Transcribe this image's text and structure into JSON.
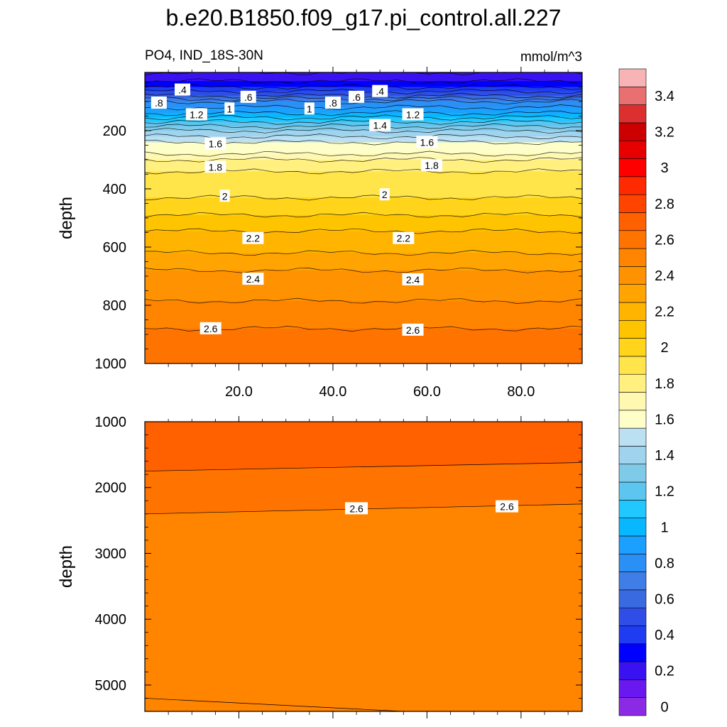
{
  "chart_data": {
    "type": "contour",
    "title": "b.e20.B1850.f09_g17.pi_control.all.227",
    "variable": "PO4, IND_18S-30N",
    "units": "mmol/m^3",
    "colorbar": {
      "levels": [
        0,
        0.1,
        0.2,
        0.3,
        0.4,
        0.5,
        0.6,
        0.7,
        0.8,
        0.9,
        1.0,
        1.1,
        1.2,
        1.3,
        1.4,
        1.5,
        1.6,
        1.7,
        1.8,
        1.9,
        2.0,
        2.1,
        2.2,
        2.3,
        2.4,
        2.5,
        2.6,
        2.7,
        2.8,
        2.9,
        3.0,
        3.1,
        3.2,
        3.3,
        3.4,
        3.5
      ],
      "labels": [
        "0",
        "0.2",
        "0.4",
        "0.6",
        "0.8",
        "1",
        "1.2",
        "1.4",
        "1.6",
        "1.8",
        "2",
        "2.2",
        "2.4",
        "2.6",
        "2.8",
        "3",
        "3.2",
        "3.4"
      ],
      "colors": [
        "#8b2ae5",
        "#6a18f0",
        "#3a12f2",
        "#0000ff",
        "#1f3cf2",
        "#2f4ee8",
        "#3a6ae0",
        "#3e7ee6",
        "#2a90f5",
        "#1ca0ff",
        "#08b8ff",
        "#20c8ff",
        "#5cc6f0",
        "#80cae9",
        "#a0d4ee",
        "#bae0f2",
        "#fefec8",
        "#fff8b0",
        "#fff080",
        "#ffe44a",
        "#ffd41a",
        "#ffc400",
        "#ffb400",
        "#ffa400",
        "#ff9200",
        "#ff8400",
        "#ff7400",
        "#ff6000",
        "#ff4400",
        "#ff2a00",
        "#ff0000",
        "#e60000",
        "#cc0000",
        "#dc3030",
        "#e87070",
        "#f8b4b4"
      ]
    },
    "panels": [
      {
        "name": "upper",
        "x_range": [
          0,
          93
        ],
        "x_ticks": [
          20.0,
          40.0,
          60.0,
          80.0
        ],
        "x_tick_labels": [
          "20.0",
          "40.0",
          "60.0",
          "80.0"
        ],
        "ylabel": "depth",
        "y_range": [
          0,
          1000
        ],
        "y_ticks": [
          200,
          400,
          600,
          800,
          1000
        ],
        "y_tick_labels": [
          "200",
          "400",
          "600",
          "800",
          "1000"
        ],
        "profile": {
          "depth": [
            0,
            30,
            50,
            80,
            100,
            140,
            170,
            200,
            240,
            280,
            300,
            340,
            400,
            460,
            520,
            570,
            620,
            680,
            750,
            820,
            880,
            950,
            1000
          ],
          "value": [
            0.2,
            0.3,
            0.4,
            0.6,
            0.8,
            1.0,
            1.2,
            1.4,
            1.6,
            1.7,
            1.8,
            1.9,
            1.95,
            2.05,
            2.15,
            2.25,
            2.3,
            2.4,
            2.45,
            2.55,
            2.6,
            2.65,
            2.67
          ]
        },
        "contour_labels": [
          {
            "text": ".4",
            "x": 8,
            "depth": 60
          },
          {
            "text": ".8",
            "x": 3,
            "depth": 105
          },
          {
            "text": ".6",
            "x": 22,
            "depth": 85
          },
          {
            "text": "1.2",
            "x": 11,
            "depth": 145
          },
          {
            "text": "1",
            "x": 18,
            "depth": 125
          },
          {
            "text": "1",
            "x": 35,
            "depth": 125
          },
          {
            "text": ".8",
            "x": 40,
            "depth": 105
          },
          {
            "text": ".6",
            "x": 45,
            "depth": 85
          },
          {
            "text": ".4",
            "x": 50,
            "depth": 65
          },
          {
            "text": "1.2",
            "x": 57,
            "depth": 145
          },
          {
            "text": "1.4",
            "x": 50,
            "depth": 182
          },
          {
            "text": "1.6",
            "x": 15,
            "depth": 245
          },
          {
            "text": "1.6",
            "x": 60,
            "depth": 240
          },
          {
            "text": "1.8",
            "x": 15,
            "depth": 325
          },
          {
            "text": "1.8",
            "x": 61,
            "depth": 320
          },
          {
            "text": "2",
            "x": 17,
            "depth": 425
          },
          {
            "text": "2",
            "x": 51,
            "depth": 420
          },
          {
            "text": "2.2",
            "x": 23,
            "depth": 570
          },
          {
            "text": "2.2",
            "x": 55,
            "depth": 570
          },
          {
            "text": "2.4",
            "x": 23,
            "depth": 710
          },
          {
            "text": "2.4",
            "x": 57,
            "depth": 712
          },
          {
            "text": "2.6",
            "x": 14,
            "depth": 880
          },
          {
            "text": "2.6",
            "x": 57,
            "depth": 885
          }
        ]
      },
      {
        "name": "lower",
        "x_range": [
          0,
          93
        ],
        "x_ticks": [
          20.0,
          40.0,
          60.0,
          80.0
        ],
        "x_tick_labels": [
          "20.0",
          "40.0",
          "60.0",
          "80.0"
        ],
        "ylabel": "depth",
        "y_range": [
          1000,
          5400
        ],
        "y_ticks": [
          1000,
          2000,
          3000,
          4000,
          5000
        ],
        "y_tick_labels": [
          "1000",
          "2000",
          "3000",
          "4000",
          "5000"
        ],
        "bands": [
          {
            "value_min": 2.7,
            "value_max": 2.8,
            "depth_left": [
              1000,
              1750
            ],
            "depth_right": [
              1000,
              1620
            ]
          },
          {
            "value_min": 2.6,
            "value_max": 2.7,
            "depth_left": [
              1750,
              2400
            ],
            "depth_right": [
              1620,
              2250
            ]
          },
          {
            "value_min": 2.5,
            "value_max": 2.6,
            "depth_left": [
              2400,
              5400
            ],
            "depth_right": [
              2250,
              5400
            ]
          }
        ],
        "contour_labels": [
          {
            "text": "2.6",
            "x": 45,
            "depth": 2320
          },
          {
            "text": "2.6",
            "x": 77,
            "depth": 2290
          }
        ]
      }
    ]
  }
}
